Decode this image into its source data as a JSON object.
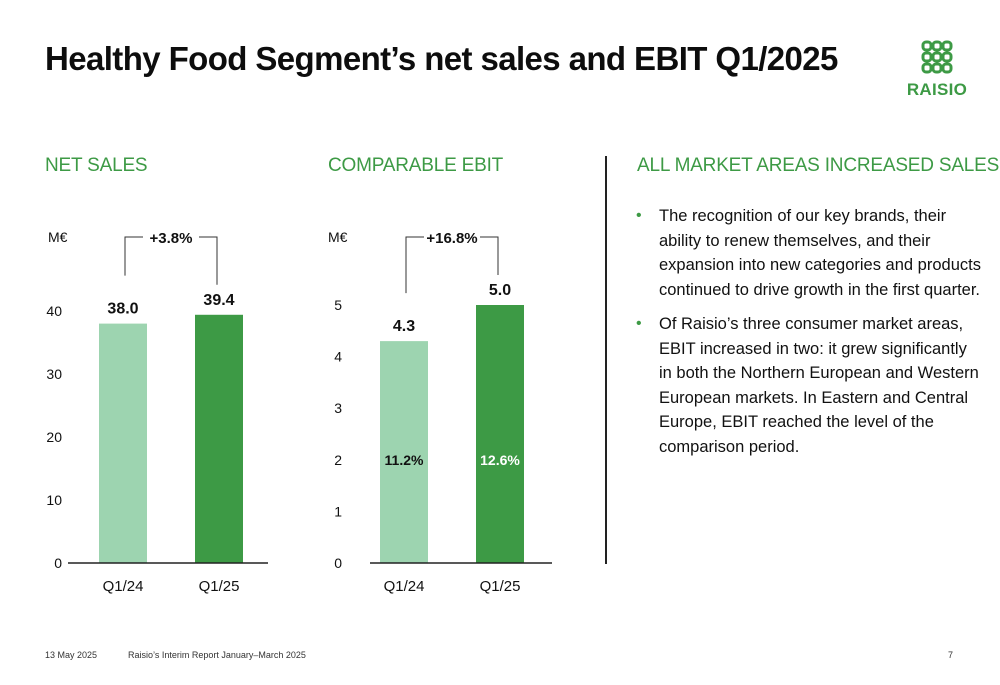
{
  "title": "Healthy Food Segment’s net sales and EBIT Q1/2025",
  "logo": {
    "text": "RAISIO"
  },
  "colors": {
    "accent": "#3d9a45",
    "bar_light": "#9dd4b0",
    "bar_dark": "#3d9a45"
  },
  "chart_data": [
    {
      "type": "bar",
      "title": "NET SALES",
      "ylabel": "M€",
      "categories": [
        "Q1/24",
        "Q1/25"
      ],
      "values": [
        38.0,
        39.4
      ],
      "value_labels": [
        "38.0",
        "39.4"
      ],
      "inner_labels": [],
      "yticks": [
        0,
        10,
        20,
        30,
        40
      ],
      "ylim": [
        0,
        40
      ],
      "change_label": "+3.8%"
    },
    {
      "type": "bar",
      "title": "COMPARABLE EBIT",
      "ylabel": "M€",
      "categories": [
        "Q1/24",
        "Q1/25"
      ],
      "values": [
        4.3,
        5.0
      ],
      "value_labels": [
        "4.3",
        "5.0"
      ],
      "inner_labels": [
        "11.2%",
        "12.6%"
      ],
      "yticks": [
        0,
        1,
        2,
        3,
        4,
        5
      ],
      "ylim": [
        0,
        5
      ],
      "change_label": "+16.8%"
    }
  ],
  "market": {
    "heading": "ALL MARKET AREAS INCREASED SALES",
    "bullets": [
      "The recognition of our key brands, their ability to renew themselves, and their expansion into new categories and products continued to drive growth in the first quarter.",
      "Of Raisio’s three consumer market areas, EBIT increased in two: it grew significantly in both the Northern European and Western European markets. In Eastern and Central Europe, EBIT reached the level of the comparison period."
    ]
  },
  "footer": {
    "date": "13 May 2025",
    "report": "Raisio’s Interim Report January–March 2025",
    "page": "7"
  }
}
